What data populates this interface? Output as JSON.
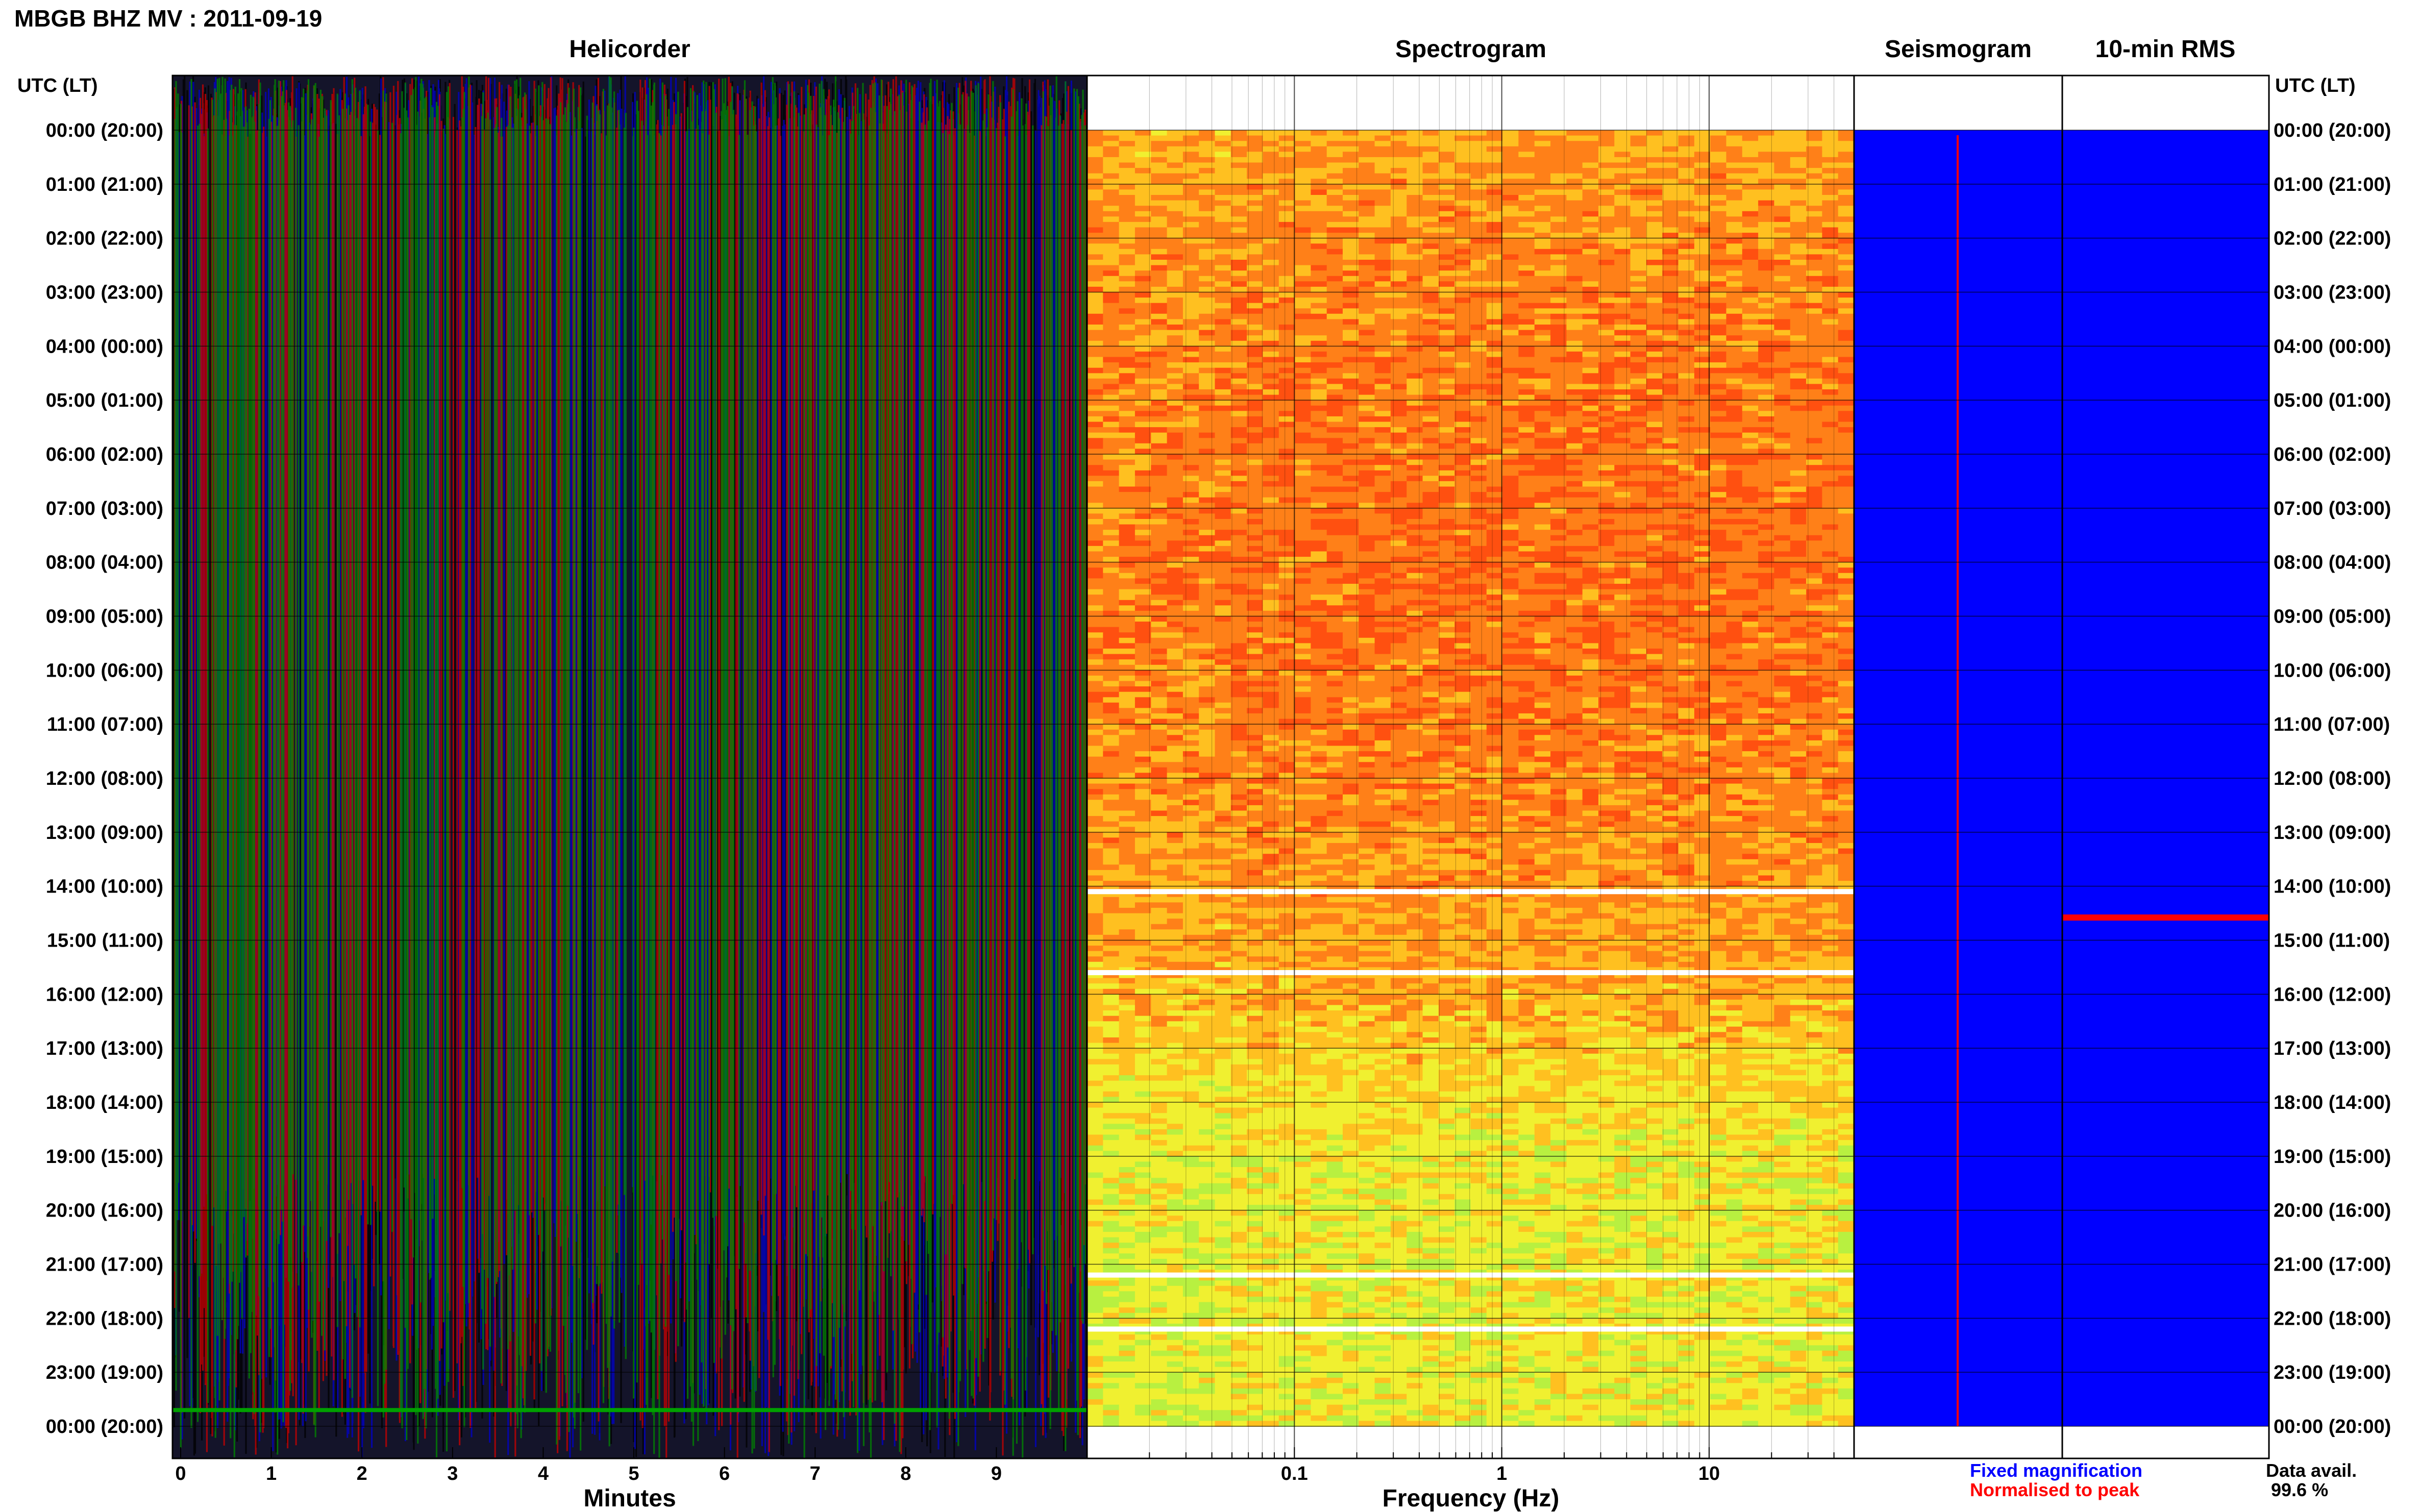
{
  "header": {
    "title": "MBGB BHZ MV : 2011-09-19"
  },
  "panels": {
    "helicorder": "Helicorder",
    "spectrogram": "Spectrogram",
    "seismogram": "Seismogram",
    "rms": "10-min RMS"
  },
  "time_axis": {
    "label_left": "UTC (LT)",
    "label_right": "UTC (LT)"
  },
  "legend": {
    "fixed": "Fixed magnification",
    "normalised": "Normalised to peak",
    "fixed_color": "#0000ff",
    "normalised_color": "#ff0000"
  },
  "data_avail": {
    "label": "Data avail.",
    "value": "99.6 %"
  },
  "chart_data": [
    {
      "type": "heatmap",
      "title": "Helicorder",
      "xlabel": "Minutes",
      "x_ticks": [
        "0",
        "1",
        "2",
        "3",
        "4",
        "5",
        "6",
        "7",
        "8",
        "9"
      ],
      "xlim": [
        0,
        10
      ],
      "trace_colors": [
        "#000000",
        "#0000cc",
        "#cc0000",
        "#008800"
      ],
      "y_ticks": [
        "00:00 (20:00)",
        "01:00 (21:00)",
        "02:00 (22:00)",
        "03:00 (23:00)",
        "04:00 (00:00)",
        "05:00 (01:00)",
        "06:00 (02:00)",
        "07:00 (03:00)",
        "08:00 (04:00)",
        "09:00 (05:00)",
        "10:00 (06:00)",
        "11:00 (07:00)",
        "12:00 (08:00)",
        "13:00 (09:00)",
        "14:00 (10:00)",
        "15:00 (11:00)",
        "16:00 (12:00)",
        "17:00 (13:00)",
        "18:00 (14:00)",
        "19:00 (15:00)",
        "20:00 (16:00)",
        "21:00 (17:00)",
        "22:00 (18:00)",
        "23:00 (19:00)",
        "00:00 (20:00)"
      ]
    },
    {
      "type": "heatmap",
      "title": "Spectrogram",
      "xlabel": "Frequency (Hz)",
      "x_scale": "log",
      "x_ticks": [
        "0.1",
        "1",
        "10"
      ],
      "x_tick_values": [
        0.1,
        1,
        10
      ],
      "xlim": [
        0.01,
        50
      ],
      "colormap": [
        "#40e8d0",
        "#b8f040",
        "#f0f030",
        "#ffc020",
        "#ff8018",
        "#ff5010"
      ],
      "data_gaps_utc": [
        14.1,
        15.6,
        21.2,
        22.2
      ]
    },
    {
      "type": "area",
      "title": "Seismogram",
      "fill_color": "#0000ff",
      "centre_line_color": "#ff0000"
    },
    {
      "type": "area",
      "title": "10-min RMS",
      "fill_color": "#0000ff",
      "peak_hour_utc": 14.58
    }
  ]
}
